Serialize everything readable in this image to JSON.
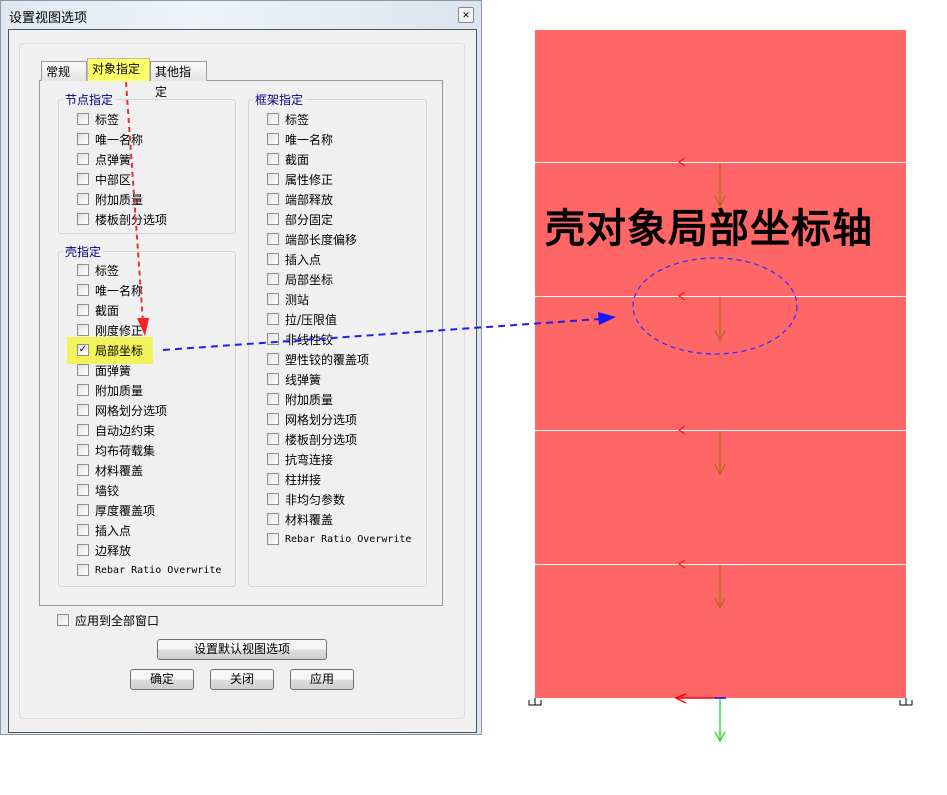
{
  "dialog": {
    "title": "设置视图选项",
    "close_icon": "close-icon",
    "tabs": [
      {
        "label": "常规"
      },
      {
        "label": "对象指定",
        "selected": true
      },
      {
        "label": "其他指定"
      }
    ],
    "node_group": {
      "label": "节点指定",
      "items": [
        {
          "label": "标签",
          "checked": false
        },
        {
          "label": "唯一名称",
          "checked": false
        },
        {
          "label": "点弹簧",
          "checked": false
        },
        {
          "label": "中部区",
          "checked": false
        },
        {
          "label": "附加质量",
          "checked": false
        },
        {
          "label": "楼板剖分选项",
          "checked": false
        }
      ]
    },
    "shell_group": {
      "label": "壳指定",
      "items": [
        {
          "label": "标签",
          "checked": false
        },
        {
          "label": "唯一名称",
          "checked": false
        },
        {
          "label": "截面",
          "checked": false
        },
        {
          "label": "刚度修正",
          "checked": false
        },
        {
          "label": "局部坐标",
          "checked": true
        },
        {
          "label": "面弹簧",
          "checked": false
        },
        {
          "label": "附加质量",
          "checked": false
        },
        {
          "label": "网格划分选项",
          "checked": false
        },
        {
          "label": "自动边约束",
          "checked": false
        },
        {
          "label": "均布荷载集",
          "checked": false
        },
        {
          "label": "材料覆盖",
          "checked": false
        },
        {
          "label": "墙铰",
          "checked": false
        },
        {
          "label": "厚度覆盖项",
          "checked": false
        },
        {
          "label": "插入点",
          "checked": false
        },
        {
          "label": "边释放",
          "checked": false
        },
        {
          "label": "Rebar Ratio Overwrite",
          "checked": false
        }
      ]
    },
    "frame_group": {
      "label": "框架指定",
      "items": [
        {
          "label": "标签",
          "checked": false
        },
        {
          "label": "唯一名称",
          "checked": false
        },
        {
          "label": "截面",
          "checked": false
        },
        {
          "label": "属性修正",
          "checked": false
        },
        {
          "label": "端部释放",
          "checked": false
        },
        {
          "label": "部分固定",
          "checked": false
        },
        {
          "label": "端部长度偏移",
          "checked": false
        },
        {
          "label": "插入点",
          "checked": false
        },
        {
          "label": "局部坐标",
          "checked": false
        },
        {
          "label": "测站",
          "checked": false
        },
        {
          "label": "拉/压限值",
          "checked": false
        },
        {
          "label": "非线性铰",
          "checked": false
        },
        {
          "label": "塑性铰的覆盖项",
          "checked": false
        },
        {
          "label": "线弹簧",
          "checked": false
        },
        {
          "label": "附加质量",
          "checked": false
        },
        {
          "label": "网格划分选项",
          "checked": false
        },
        {
          "label": "楼板剖分选项",
          "checked": false
        },
        {
          "label": "抗弯连接",
          "checked": false
        },
        {
          "label": "柱拼接",
          "checked": false
        },
        {
          "label": "非均匀参数",
          "checked": false
        },
        {
          "label": "材料覆盖",
          "checked": false
        },
        {
          "label": "Rebar Ratio Overwrite",
          "checked": false
        }
      ]
    },
    "apply_all": {
      "label": "应用到全部窗口",
      "checked": false
    },
    "default_button": "设置默认视图选项",
    "ok_button": "确定",
    "close_button": "关闭",
    "apply_button": "应用"
  },
  "annotation": {
    "caption": "壳对象局部坐标轴",
    "highlight_color": "#ffff66"
  },
  "model": {
    "shell_color": "#ff6666",
    "axis_colors": {
      "axis1": "#ff0000",
      "axis2": "#00cc00",
      "axis3": "#0000ff",
      "local_arrow": "#b8651e"
    }
  }
}
